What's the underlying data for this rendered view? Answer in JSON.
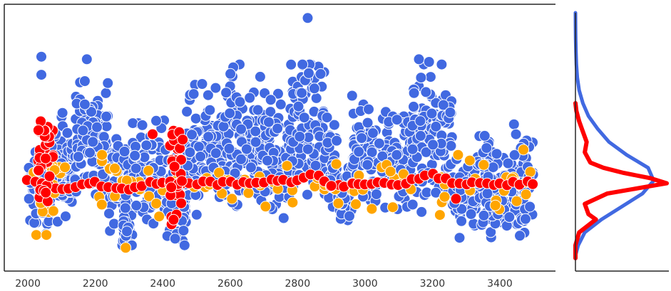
{
  "chart_data": [
    {
      "type": "scatter",
      "title": "",
      "xlabel": "",
      "ylabel": "",
      "xlim": [
        1930,
        3565
      ],
      "ylim": [
        0,
        100
      ],
      "x_ticks": [
        "2000",
        "2200",
        "2400",
        "2600",
        "2800",
        "3000",
        "3200",
        "3400"
      ],
      "x_tick_values": [
        2000,
        2200,
        2400,
        2600,
        2800,
        3000,
        3200,
        3400
      ],
      "y_ticks_shown": false,
      "grid": false,
      "legend": "none",
      "x_range_of_points": [
        2000,
        3500
      ],
      "series": [
        {
          "color": "#4169e1",
          "marker": "circle",
          "outline": "#ffffff",
          "approx_point_count": 1500,
          "typical_level": 40,
          "spread_low": 10,
          "spread_high": 80,
          "notable_points": [
            {
              "x": 2040,
              "y": 83
            },
            {
              "x": 2040,
              "y": 76
            },
            {
              "x": 2175,
              "y": 82
            },
            {
              "x": 2830,
              "y": 98
            },
            {
              "x": 3160,
              "y": 82
            },
            {
              "x": 3190,
              "y": 81
            }
          ],
          "segments": [
            {
              "x": [
                2000,
                2070
              ],
              "center": 30,
              "spread": 7
            },
            {
              "x": [
                2070,
                2140
              ],
              "center": 40,
              "spread": 9
            },
            {
              "x": [
                2140,
                2240
              ],
              "center": 52,
              "spread": 10
            },
            {
              "x": [
                2240,
                2300
              ],
              "center": 36,
              "spread": 9
            },
            {
              "x": [
                2280,
                2310
              ],
              "center": 16,
              "spread": 5
            },
            {
              "x": [
                2310,
                2410
              ],
              "center": 40,
              "spread": 10
            },
            {
              "x": [
                2410,
                2470
              ],
              "center": 26,
              "spread": 8
            },
            {
              "x": [
                2470,
                2580
              ],
              "center": 45,
              "spread": 11
            },
            {
              "x": [
                2580,
                2700
              ],
              "center": 50,
              "spread": 13
            },
            {
              "x": [
                2700,
                2780
              ],
              "center": 44,
              "spread": 10
            },
            {
              "x": [
                2780,
                2880
              ],
              "center": 58,
              "spread": 12
            },
            {
              "x": [
                2880,
                2920
              ],
              "center": 45,
              "spread": 10
            },
            {
              "x": [
                2920,
                2960
              ],
              "center": 28,
              "spread": 7
            },
            {
              "x": [
                2960,
                3140
              ],
              "center": 45,
              "spread": 10
            },
            {
              "x": [
                3140,
                3260
              ],
              "center": 52,
              "spread": 11
            },
            {
              "x": [
                3260,
                3330
              ],
              "center": 28,
              "spread": 6
            },
            {
              "x": [
                3330,
                3500
              ],
              "center": 35,
              "spread": 9
            }
          ]
        },
        {
          "color": "#ffa500",
          "marker": "circle",
          "outline": "#ffffff",
          "approx_point_count": 100,
          "typical_level": 32,
          "spread_low": 9,
          "spread_high": 47,
          "notable_points": [
            {
              "x": 2025,
              "y": 14
            },
            {
              "x": 2055,
              "y": 14
            },
            {
              "x": 2290,
              "y": 9
            },
            {
              "x": 2220,
              "y": 45
            },
            {
              "x": 3470,
              "y": 47
            }
          ]
        },
        {
          "color": "#ff0000",
          "marker": "circle",
          "outline": "#ffffff",
          "approx_point_count": 120,
          "typical_level": 36,
          "spread_low": 16,
          "spread_high": 58,
          "path": [
            {
              "x": 2000,
              "y": 35
            },
            {
              "x": 2030,
              "y": 34
            },
            {
              "x": 2060,
              "y": 33
            },
            {
              "x": 2100,
              "y": 32
            },
            {
              "x": 2150,
              "y": 33
            },
            {
              "x": 2200,
              "y": 34
            },
            {
              "x": 2250,
              "y": 32
            },
            {
              "x": 2300,
              "y": 32
            },
            {
              "x": 2350,
              "y": 34
            },
            {
              "x": 2400,
              "y": 34
            },
            {
              "x": 2500,
              "y": 34
            },
            {
              "x": 2600,
              "y": 34
            },
            {
              "x": 2700,
              "y": 35
            },
            {
              "x": 2800,
              "y": 35
            },
            {
              "x": 2850,
              "y": 38
            },
            {
              "x": 2900,
              "y": 33
            },
            {
              "x": 3000,
              "y": 34
            },
            {
              "x": 3100,
              "y": 34
            },
            {
              "x": 3200,
              "y": 37
            },
            {
              "x": 3250,
              "y": 35
            },
            {
              "x": 3300,
              "y": 34
            },
            {
              "x": 3400,
              "y": 34
            },
            {
              "x": 3500,
              "y": 34
            }
          ],
          "clusters": [
            {
              "x": [
                2030,
                2075
              ],
              "y_from": 25,
              "y_to": 58
            },
            {
              "x": [
                2420,
                2460
              ],
              "y_from": 16,
              "y_to": 55
            }
          ],
          "isolated_points": [
            {
              "x": 2370,
              "y": 53
            },
            {
              "x": 2900,
              "y": 33
            },
            {
              "x": 3270,
              "y": 28
            }
          ]
        }
      ]
    },
    {
      "type": "area",
      "orientation": "horizontal",
      "description_role": "marginal density along the shared y axis",
      "ylim": [
        0,
        100
      ],
      "grid": false,
      "legend": "none",
      "series": [
        {
          "color": "#4169e1",
          "y": [
            6,
            10,
            15,
            20,
            25,
            30,
            35,
            40,
            45,
            50,
            55,
            60,
            65,
            70,
            75,
            80,
            85,
            90,
            95,
            100
          ],
          "density": [
            0.0,
            0.03,
            0.1,
            0.28,
            0.5,
            0.72,
            0.84,
            0.78,
            0.55,
            0.36,
            0.24,
            0.14,
            0.08,
            0.04,
            0.02,
            0.01,
            0.005,
            0.002,
            0.001,
            0.0
          ]
        },
        {
          "color": "#ff0000",
          "y": [
            5,
            10,
            15,
            20,
            22,
            26,
            30,
            32,
            34,
            36,
            38,
            40,
            42,
            46,
            50,
            54,
            58,
            62,
            65
          ],
          "density": [
            0.0,
            0.0,
            0.04,
            0.22,
            0.14,
            0.1,
            0.34,
            0.66,
            0.98,
            0.8,
            0.52,
            0.3,
            0.16,
            0.1,
            0.12,
            0.08,
            0.04,
            0.01,
            0.0
          ]
        }
      ]
    }
  ]
}
